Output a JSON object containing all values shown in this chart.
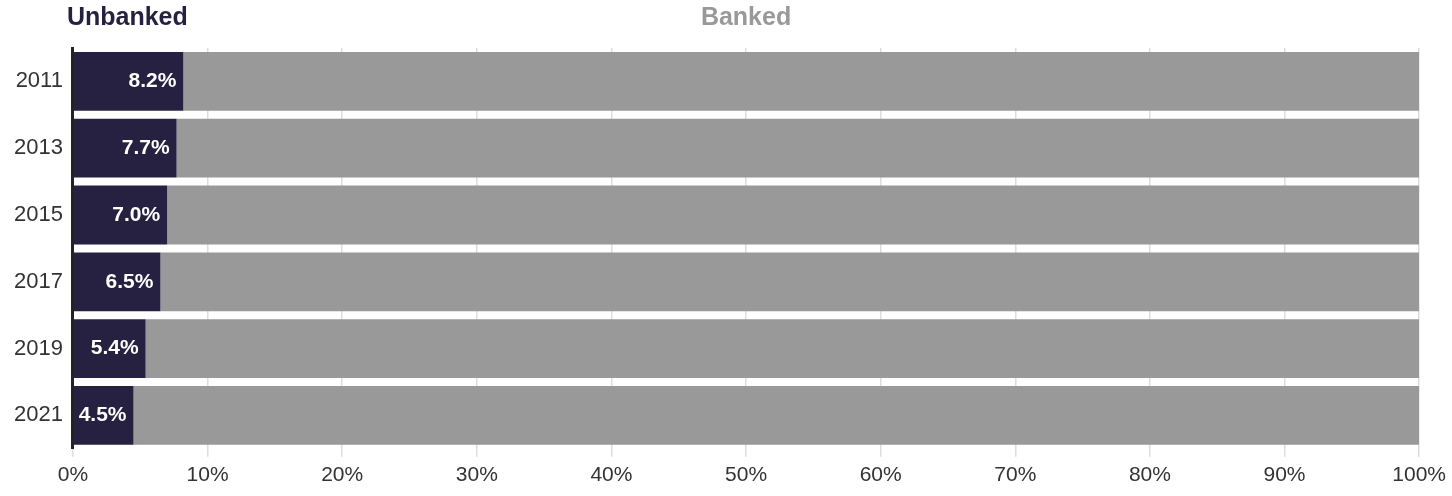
{
  "chart_data": {
    "type": "bar",
    "orientation": "horizontal",
    "stacked": true,
    "categories": [
      "2011",
      "2013",
      "2015",
      "2017",
      "2019",
      "2021"
    ],
    "series": [
      {
        "name": "Unbanked",
        "color": "#262140",
        "values": [
          8.2,
          7.7,
          7.0,
          6.5,
          5.4,
          4.5
        ],
        "value_labels": [
          "8.2%",
          "7.7%",
          "7.0%",
          "6.5%",
          "5.4%",
          "4.5%"
        ]
      },
      {
        "name": "Banked",
        "color": "#999999",
        "values": [
          91.8,
          92.3,
          93.0,
          93.5,
          94.6,
          95.5
        ]
      }
    ],
    "xlim": [
      0,
      100
    ],
    "xticks": [
      {
        "value": 0,
        "label": "0%"
      },
      {
        "value": 10,
        "label": "10%"
      },
      {
        "value": 20,
        "label": "20%"
      },
      {
        "value": 30,
        "label": "30%"
      },
      {
        "value": 40,
        "label": "40%"
      },
      {
        "value": 50,
        "label": "50%"
      },
      {
        "value": 60,
        "label": "60%"
      },
      {
        "value": 70,
        "label": "70%"
      },
      {
        "value": 80,
        "label": "80%"
      },
      {
        "value": 90,
        "label": "90%"
      },
      {
        "value": 100,
        "label": "100%"
      }
    ],
    "grid": "x",
    "legend": "top"
  }
}
